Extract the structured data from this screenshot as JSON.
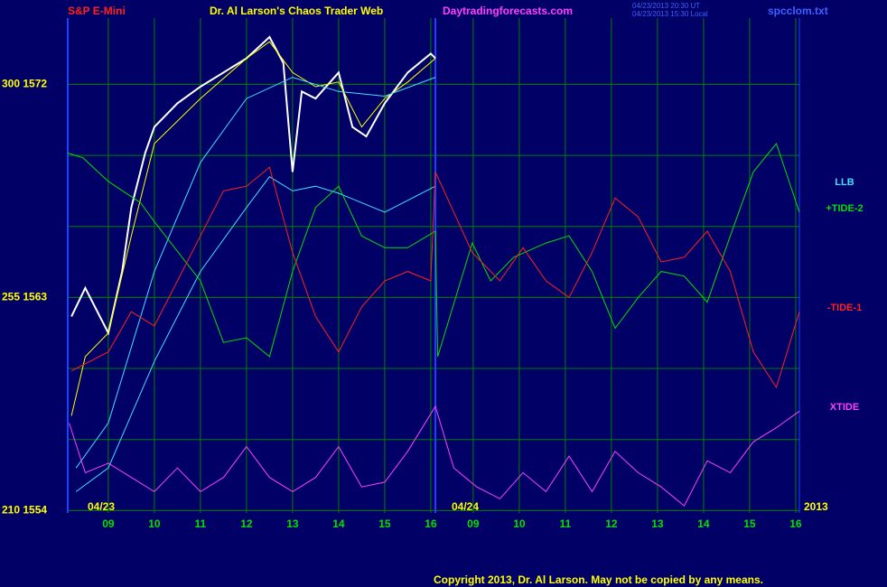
{
  "chart_data": {
    "type": "line",
    "title": "Dr. Al Larson's Chaos Trader Web",
    "subtitle": "S&P E-Mini",
    "site": "Daytradingforecasts.com",
    "timestamps": [
      "04/23/2013 20:30 UT",
      "04/23/2013 15:30 Local"
    ],
    "file": "spcclom.txt",
    "date_labels": [
      "04/23",
      "04/24",
      "2013"
    ],
    "copyright": "Copyright 2013, Dr. Al Larson. May not be copied by any means.",
    "xlim": [
      8.12,
      24.0
    ],
    "ylim": [
      1553.9,
      1574.8
    ],
    "xticks": [
      {
        "value": 9,
        "label": "09"
      },
      10,
      11,
      12,
      13,
      14,
      15,
      16,
      {
        "value": 16.92,
        "label": "09"
      },
      {
        "value": 17.92,
        "label": "10"
      },
      {
        "value": 18.92,
        "label": "11"
      },
      {
        "value": 19.92,
        "label": "12"
      },
      {
        "value": 20.92,
        "label": "13"
      },
      {
        "value": 21.92,
        "label": "14"
      },
      {
        "value": 22.92,
        "label": "15"
      },
      {
        "value": 23.92,
        "label": "16"
      }
    ],
    "yticks": [
      {
        "value": 1572,
        "label": "300 1572"
      },
      {
        "value": 1569,
        "label": null
      },
      {
        "value": 1566,
        "label": null
      },
      {
        "value": 1563,
        "label": "255 1563"
      },
      {
        "value": 1560,
        "label": null
      },
      {
        "value": 1557,
        "label": null
      },
      {
        "value": 1554,
        "label": "210 1554"
      }
    ],
    "grid": true,
    "series": [
      {
        "color": "#ffffff",
        "x": [
          8.2,
          8.5,
          9,
          9.3,
          9.5,
          9.8,
          10,
          10.5,
          11,
          11.5,
          12,
          12.5,
          12.8,
          13,
          13.2,
          13.5,
          14,
          14.3,
          14.6,
          15,
          15.5,
          16,
          16.1
        ],
        "values": [
          1562.2,
          1563.4,
          1561.5,
          1564.1,
          1566.8,
          1569.1,
          1570.2,
          1571.2,
          1571.9,
          1572.5,
          1573.1,
          1574.0,
          1572.9,
          1568.3,
          1571.7,
          1571.4,
          1572.5,
          1570.2,
          1569.8,
          1571.2,
          1572.5,
          1573.3,
          1573.1
        ]
      },
      {
        "color": "#ffff00",
        "x": [
          8.2,
          8.5,
          9,
          9.5,
          10,
          11,
          12,
          12.5,
          13,
          13.5,
          14,
          14.5,
          15,
          15.5,
          16.1
        ],
        "values": [
          1558.0,
          1560.5,
          1561.5,
          1565.6,
          1569.5,
          1571.4,
          1573.1,
          1573.8,
          1572.5,
          1571.9,
          1572.1,
          1570.2,
          1571.4,
          1572.1,
          1573.1
        ]
      },
      {
        "color": "#40e0ff",
        "x": [
          8.3,
          9,
          10,
          11,
          12,
          13,
          14,
          15,
          16.1
        ],
        "values": [
          1555.8,
          1557.7,
          1564.1,
          1568.7,
          1571.4,
          1572.3,
          1571.7,
          1571.5,
          1572.3
        ]
      },
      {
        "name": "LLB",
        "color": "#40e0ff",
        "x": [
          8.3,
          9,
          10,
          11,
          12,
          12.5,
          13,
          13.5,
          14,
          15,
          16.1
        ],
        "values": [
          1554.8,
          1555.8,
          1560.3,
          1564.1,
          1566.8,
          1568.1,
          1567.5,
          1567.7,
          1567.4,
          1566.6,
          1567.7
        ]
      },
      {
        "name": "+TIDE-2",
        "color": "#00e000",
        "x": [
          8.12,
          8.45,
          9,
          9.7,
          10,
          11,
          11.5,
          12,
          12.5,
          13,
          13.5,
          14,
          14.5,
          15,
          15.5,
          16.1,
          16.15,
          16.9,
          17.3,
          17.8,
          18.5,
          19,
          19.5,
          20,
          20.5,
          21,
          21.5,
          22,
          22.5,
          23,
          23.5,
          24
        ],
        "values": [
          1569.1,
          1568.9,
          1567.9,
          1567.0,
          1566.2,
          1563.7,
          1561.1,
          1561.3,
          1560.5,
          1564.1,
          1566.8,
          1567.7,
          1565.6,
          1565.1,
          1565.1,
          1565.8,
          1560.5,
          1565.3,
          1563.7,
          1564.7,
          1565.3,
          1565.6,
          1564.1,
          1561.7,
          1563.0,
          1564.1,
          1563.9,
          1562.8,
          1565.6,
          1568.3,
          1569.5,
          1566.6
        ]
      },
      {
        "name": "-TIDE-1",
        "color": "#ff2020",
        "x": [
          8.2,
          9,
          9.5,
          10,
          11,
          11.5,
          12,
          12.5,
          13,
          13.5,
          14,
          14.5,
          15,
          15.5,
          16,
          16.1,
          16.9,
          17.5,
          18,
          18.5,
          19,
          19.5,
          20,
          20.5,
          21,
          21.5,
          22,
          22.5,
          23,
          23.5,
          24
        ],
        "values": [
          1559.9,
          1560.7,
          1562.4,
          1561.8,
          1565.6,
          1567.5,
          1567.7,
          1568.5,
          1564.9,
          1562.2,
          1560.7,
          1562.6,
          1563.7,
          1564.1,
          1563.7,
          1568.3,
          1564.9,
          1563.7,
          1565.1,
          1563.7,
          1563.0,
          1564.9,
          1567.2,
          1566.4,
          1564.5,
          1564.7,
          1565.8,
          1564.1,
          1560.7,
          1559.2,
          1562.4
        ]
      },
      {
        "name": "XTIDE",
        "color": "#ff40ff",
        "x": [
          8.15,
          8.5,
          9,
          9.5,
          10,
          10.5,
          11,
          11.5,
          12,
          12.5,
          13,
          13.5,
          14,
          14.5,
          15,
          15.5,
          16.1,
          16.5,
          17,
          17.5,
          18,
          18.5,
          19,
          19.5,
          20,
          20.5,
          21,
          21.5,
          22,
          22.5,
          23,
          23.5,
          24
        ],
        "values": [
          1557.7,
          1555.6,
          1556.0,
          1555.4,
          1554.8,
          1555.8,
          1554.8,
          1555.4,
          1556.7,
          1555.4,
          1554.8,
          1555.4,
          1556.7,
          1555.0,
          1555.2,
          1556.5,
          1558.4,
          1555.8,
          1555.0,
          1554.5,
          1555.6,
          1554.8,
          1556.3,
          1554.8,
          1556.5,
          1555.6,
          1555.0,
          1554.2,
          1556.1,
          1555.6,
          1556.9,
          1557.5,
          1558.2
        ]
      }
    ]
  }
}
